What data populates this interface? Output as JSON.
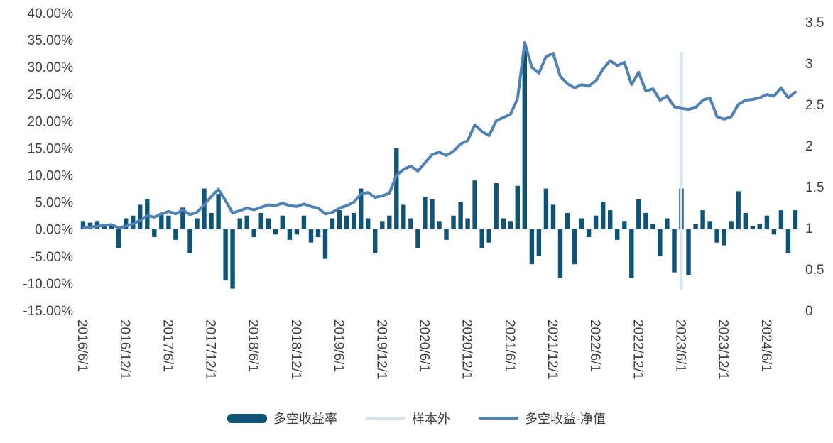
{
  "chart_data": {
    "type": "combo",
    "title": "",
    "x_months_start": "2016/6",
    "x_months_end": "2024/10",
    "x_tick_step": 6,
    "x_tick_labels": [
      "2016/6/1",
      "2016/12/1",
      "2017/6/1",
      "2017/12/1",
      "2018/6/1",
      "2018/12/1",
      "2019/6/1",
      "2019/12/1",
      "2020/6/1",
      "2020/12/1",
      "2021/6/1",
      "2021/12/1",
      "2022/6/1",
      "2022/12/1",
      "2023/6/1",
      "2023/12/1",
      "2024/6/1"
    ],
    "left_axis": {
      "min": -15,
      "max": 40,
      "format": "percent",
      "tick_labels": [
        "40.00%",
        "35.00%",
        "30.00%",
        "25.00%",
        "20.00%",
        "15.00%",
        "10.00%",
        "5.00%",
        "0.00%",
        "-5.00%",
        "-10.00%",
        "-15.00%"
      ]
    },
    "right_axis": {
      "min": 0,
      "max": 3.5,
      "tick_labels": [
        "3.5",
        "3",
        "2.5",
        "2",
        "1.5",
        "1",
        "0.5",
        "0"
      ]
    },
    "legend_position": "bottom",
    "series": [
      {
        "name": "多空收益率",
        "type": "bar",
        "axis": "left",
        "unit": "%",
        "color": "#0f5377",
        "values": [
          1.5,
          1.2,
          1.5,
          0.5,
          1.0,
          -3.5,
          2.0,
          2.5,
          4.5,
          5.5,
          -1.5,
          3.0,
          2.5,
          -2.0,
          4.0,
          -4.5,
          2.0,
          7.5,
          3.0,
          6.5,
          -9.5,
          -11.0,
          2.0,
          2.5,
          -1.5,
          3.0,
          2.0,
          -1.0,
          2.5,
          -2.0,
          -1.0,
          2.5,
          -2.5,
          -1.5,
          -5.5,
          2.0,
          3.5,
          2.5,
          3.0,
          7.5,
          2.0,
          -4.5,
          1.5,
          2.5,
          15.0,
          4.5,
          2.0,
          -3.5,
          6.0,
          5.5,
          1.5,
          -2.0,
          2.5,
          5.0,
          2.0,
          9.0,
          -3.5,
          -2.5,
          8.5,
          2.0,
          1.5,
          8.0,
          33.0,
          -6.5,
          -5.0,
          7.5,
          4.5,
          -9.0,
          3.0,
          -6.5,
          2.0,
          -1.5,
          2.5,
          5.0,
          3.5,
          -2.0,
          1.5,
          -9.0,
          5.5,
          3.0,
          1.0,
          -5.0,
          2.0,
          -8.0,
          7.5,
          -8.5,
          1.0,
          3.5,
          1.5,
          -2.5,
          -3.0,
          1.5,
          7.0,
          3.0,
          0.5,
          1.0,
          2.5,
          -1.0,
          3.5,
          -4.5,
          3.5
        ]
      },
      {
        "name": "样本外",
        "type": "vline",
        "index": 84,
        "at_x": "2023/6/1",
        "color": "#d6e4f0"
      },
      {
        "name": "多空收益-净值",
        "type": "line",
        "axis": "right",
        "color": "#4f81b5",
        "values": [
          1.0,
          1.01,
          1.02,
          1.03,
          1.04,
          1.0,
          1.02,
          1.05,
          1.09,
          1.15,
          1.13,
          1.17,
          1.2,
          1.17,
          1.22,
          1.16,
          1.19,
          1.28,
          1.38,
          1.47,
          1.33,
          1.18,
          1.21,
          1.24,
          1.22,
          1.25,
          1.28,
          1.27,
          1.3,
          1.27,
          1.26,
          1.29,
          1.26,
          1.24,
          1.17,
          1.19,
          1.24,
          1.27,
          1.31,
          1.41,
          1.43,
          1.37,
          1.39,
          1.42,
          1.64,
          1.71,
          1.75,
          1.69,
          1.79,
          1.89,
          1.92,
          1.88,
          1.93,
          2.02,
          2.06,
          2.25,
          2.17,
          2.12,
          2.3,
          2.34,
          2.38,
          2.57,
          3.25,
          2.95,
          2.88,
          3.08,
          3.12,
          2.84,
          2.75,
          2.7,
          2.74,
          2.72,
          2.79,
          2.93,
          3.03,
          2.97,
          3.01,
          2.74,
          2.89,
          2.66,
          2.69,
          2.55,
          2.6,
          2.47,
          2.45,
          2.44,
          2.46,
          2.55,
          2.58,
          2.35,
          2.32,
          2.35,
          2.5,
          2.55,
          2.56,
          2.58,
          2.62,
          2.6,
          2.7,
          2.58,
          2.65
        ]
      }
    ]
  }
}
